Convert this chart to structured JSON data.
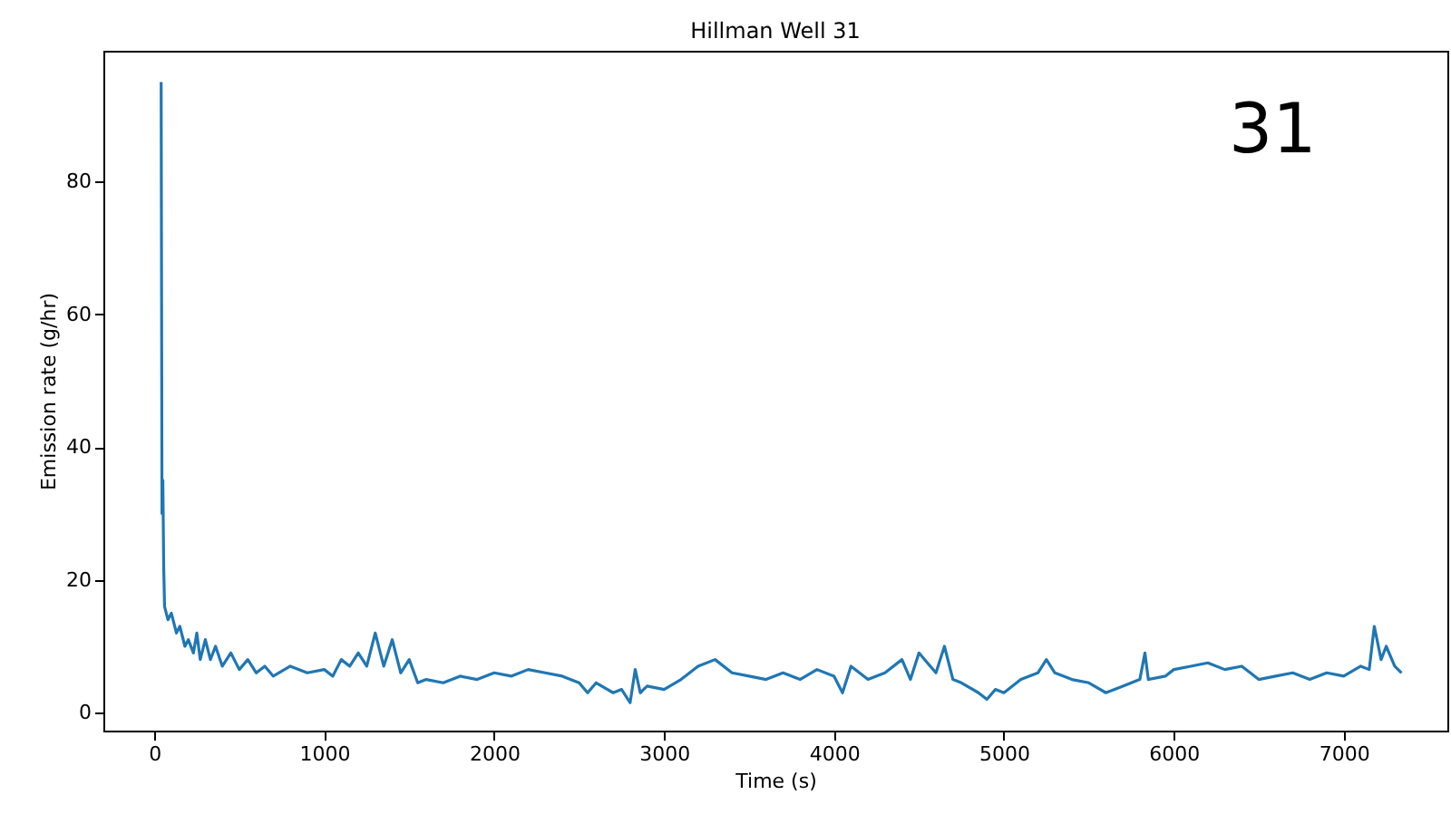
{
  "chart_data": {
    "type": "line",
    "title": "Hillman Well 31",
    "xlabel": "Time (s)",
    "ylabel": "Emission rate (g/hr)",
    "annotations": [
      "31"
    ],
    "x": [
      40,
      45,
      50,
      55,
      60,
      80,
      100,
      130,
      150,
      180,
      200,
      230,
      250,
      270,
      300,
      330,
      360,
      400,
      450,
      500,
      550,
      600,
      650,
      700,
      800,
      900,
      1000,
      1050,
      1100,
      1150,
      1200,
      1250,
      1300,
      1350,
      1400,
      1450,
      1500,
      1550,
      1600,
      1700,
      1800,
      1900,
      2000,
      2100,
      2200,
      2300,
      2400,
      2500,
      2550,
      2600,
      2700,
      2750,
      2800,
      2830,
      2860,
      2900,
      3000,
      3100,
      3200,
      3300,
      3400,
      3500,
      3600,
      3700,
      3800,
      3900,
      4000,
      4050,
      4100,
      4200,
      4300,
      4400,
      4450,
      4500,
      4600,
      4650,
      4700,
      4750,
      4850,
      4900,
      4950,
      5000,
      5100,
      5200,
      5250,
      5300,
      5400,
      5500,
      5600,
      5700,
      5800,
      5830,
      5850,
      5950,
      6000,
      6100,
      6200,
      6300,
      6400,
      6500,
      6600,
      6700,
      6800,
      6900,
      7000,
      7100,
      7150,
      7180,
      7220,
      7250,
      7300,
      7340
    ],
    "series": [
      {
        "color": "#1f77b4",
        "values": [
          95,
          30,
          35,
          22,
          16,
          14,
          15,
          12,
          13,
          10,
          11,
          9,
          12,
          8,
          11,
          8,
          10,
          7,
          9,
          6.5,
          8,
          6,
          7,
          5.5,
          7,
          6,
          6.5,
          5.5,
          8,
          7,
          9,
          7,
          12,
          7,
          11,
          6,
          8,
          4.5,
          5,
          4.5,
          5.5,
          5,
          6,
          5.5,
          6.5,
          6,
          5.5,
          4.5,
          3,
          4.5,
          3,
          3.5,
          1.5,
          6.5,
          3,
          4,
          3.5,
          5,
          7,
          8,
          6,
          5.5,
          5,
          6,
          5,
          6.5,
          5.5,
          3,
          7,
          5,
          6,
          8,
          5,
          9,
          6,
          10,
          5,
          4.5,
          3,
          2,
          3.5,
          3,
          5,
          6,
          8,
          6,
          5,
          4.5,
          3,
          4,
          5,
          9,
          5,
          5.5,
          6.5,
          7,
          7.5,
          6.5,
          7,
          5,
          5.5,
          6,
          5,
          6,
          5.5,
          7,
          6.5,
          13,
          8,
          10,
          7,
          6
        ]
      }
    ],
    "xlim": [
      -300,
      7610
    ],
    "ylim": [
      -2.7,
      99.7
    ],
    "xticks": [
      0,
      1000,
      2000,
      3000,
      4000,
      5000,
      6000,
      7000
    ],
    "yticks": [
      0,
      20,
      40,
      60,
      80
    ]
  }
}
